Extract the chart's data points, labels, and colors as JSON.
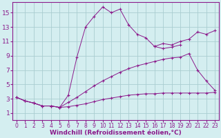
{
  "background_color": "#d4eef0",
  "line_color": "#8b1a8b",
  "grid_color": "#aacdd0",
  "xlabel": "Windchill (Refroidissement éolien,°C)",
  "xlabel_fontsize": 6.5,
  "xtick_fontsize": 5.5,
  "ytick_fontsize": 6.5,
  "xlim": [
    -0.5,
    23.5
  ],
  "ylim": [
    0,
    16.5
  ],
  "yticks": [
    1,
    3,
    5,
    7,
    9,
    11,
    13,
    15
  ],
  "xticks": [
    0,
    1,
    2,
    3,
    4,
    5,
    6,
    7,
    8,
    9,
    10,
    11,
    12,
    13,
    14,
    15,
    16,
    17,
    18,
    19,
    20,
    21,
    22,
    23
  ],
  "curves": [
    {
      "x": [
        0,
        1,
        2,
        3,
        4,
        5,
        6,
        7,
        8,
        9,
        10,
        11,
        12,
        13,
        14,
        15,
        16,
        17,
        18,
        19,
        20,
        21,
        22,
        23
      ],
      "y": [
        3.2,
        2.7,
        2.4,
        2.0,
        2.0,
        1.8,
        1.9,
        2.1,
        2.3,
        2.6,
        2.9,
        3.1,
        3.3,
        3.5,
        3.6,
        3.7,
        3.7,
        3.8,
        3.8,
        3.8,
        3.8,
        3.8,
        3.8,
        3.9
      ]
    },
    {
      "x": [
        0,
        1,
        2,
        3,
        4,
        5,
        6,
        7,
        8,
        9,
        10,
        11,
        12,
        13,
        14,
        15,
        16,
        17,
        18,
        19,
        20,
        21,
        22,
        23
      ],
      "y": [
        3.2,
        2.7,
        2.4,
        2.0,
        2.0,
        1.8,
        2.5,
        3.2,
        4.0,
        4.8,
        5.5,
        6.1,
        6.7,
        7.2,
        7.6,
        7.9,
        8.2,
        8.5,
        8.7,
        8.8,
        9.3,
        7.0,
        5.5,
        4.2
      ]
    },
    {
      "x": [
        0,
        1,
        2,
        3,
        4,
        5,
        6,
        7,
        8,
        9,
        10,
        11,
        12,
        13,
        14,
        15,
        16,
        17,
        18,
        19
      ],
      "y": [
        3.2,
        2.7,
        2.4,
        2.0,
        2.0,
        1.8,
        3.5,
        8.8,
        13.0,
        14.5,
        15.8,
        15.0,
        15.5,
        13.3,
        12.0,
        11.5,
        10.3,
        10.0,
        10.2,
        10.5
      ]
    },
    {
      "x": [
        16,
        17,
        18,
        19,
        20,
        21,
        22,
        23
      ],
      "y": [
        10.3,
        10.7,
        10.5,
        11.0,
        11.3,
        12.3,
        12.0,
        12.5
      ]
    }
  ]
}
